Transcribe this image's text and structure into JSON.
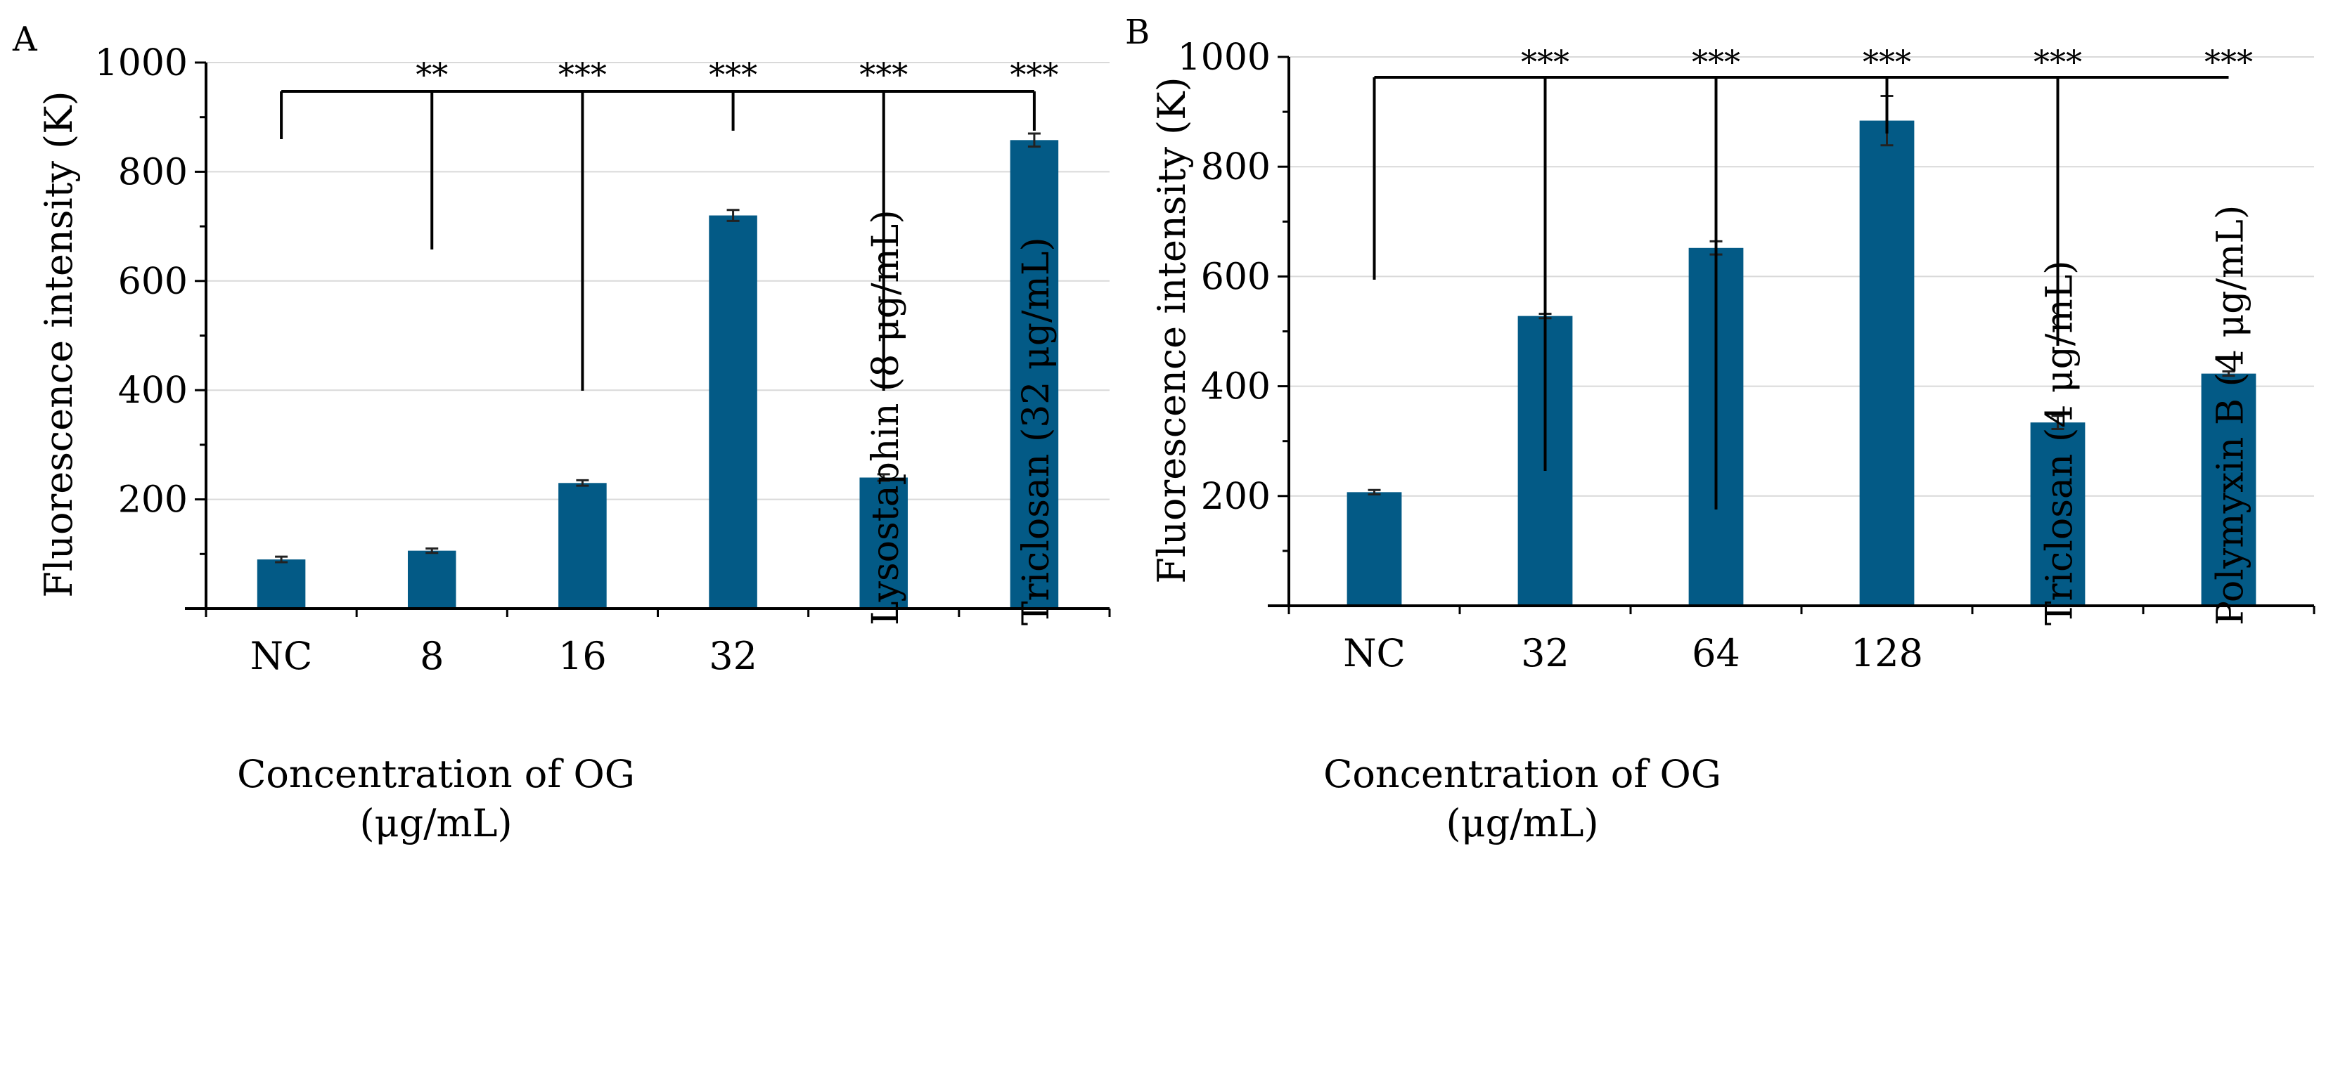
{
  "panels": [
    {
      "label": "A",
      "ylabel": "Fluorescence intensity (K)",
      "xlabel_line1": "Concentration of OG",
      "xlabel_line2": "(μg/mL)"
    },
    {
      "label": "B",
      "ylabel": "Fluorescence intensity (K)",
      "xlabel_line1": "Concentration of OG",
      "xlabel_line2": "(μg/mL)"
    }
  ],
  "colors": {
    "bar": "#035a86",
    "grid": "#d9d9d9",
    "axis": "#000000"
  },
  "chart_data": [
    {
      "type": "bar",
      "panel": "A",
      "categories": [
        "NC",
        "8",
        "16",
        "32",
        "Lysostaphin (8 μg/mL)",
        "Triclosan (32 μg/mL)"
      ],
      "rotated_categories": [
        false,
        false,
        false,
        false,
        true,
        true
      ],
      "values": [
        90,
        106,
        230,
        720,
        240,
        858
      ],
      "errors": [
        5,
        4,
        5,
        10,
        6,
        12
      ],
      "significance": [
        "",
        "**",
        "***",
        "***",
        "***",
        "***"
      ],
      "ylabel": "Fluorescence intensity (K)",
      "xlabel": "Concentration of OG (μg/mL)",
      "ylim": [
        0,
        1000
      ],
      "yticks": [
        "200",
        "400",
        "600",
        "800",
        "1000"
      ],
      "grid": true
    },
    {
      "type": "bar",
      "panel": "B",
      "categories": [
        "NC",
        "32",
        "64",
        "128",
        "Triclosan (4 μg/mL)",
        "Polymyxin B (4 μg/mL)"
      ],
      "rotated_categories": [
        false,
        false,
        false,
        false,
        true,
        true
      ],
      "values": [
        207,
        528,
        652,
        884,
        334,
        423
      ],
      "errors": [
        4,
        4,
        12,
        45,
        12,
        4
      ],
      "significance": [
        "",
        "***",
        "***",
        "***",
        "***",
        "***"
      ],
      "ylabel": "Fluorescence intensity (K)",
      "xlabel": "Concentration of OG (μg/mL)",
      "ylim": [
        0,
        1000
      ],
      "yticks": [
        "200",
        "400",
        "600",
        "800",
        "1000"
      ],
      "grid": true
    }
  ]
}
